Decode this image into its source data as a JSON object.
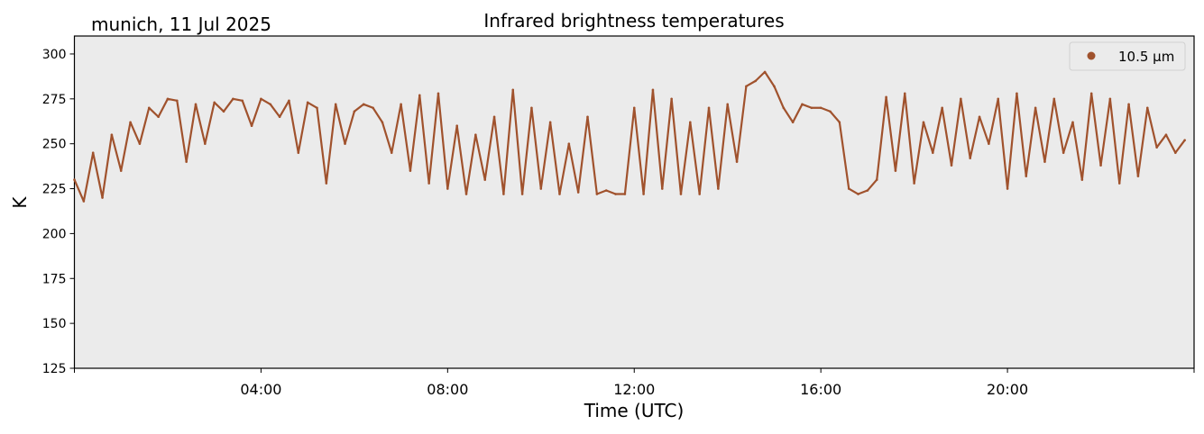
{
  "chart_data": {
    "type": "line",
    "title": "Infrared brightness temperatures",
    "subtitle": "munich, 11 Jul 2025",
    "xlabel": "Time (UTC)",
    "ylabel": "K",
    "xlim": [
      0,
      24
    ],
    "ylim": [
      125,
      310
    ],
    "xticks": [
      {
        "v": 4,
        "label": "04:00"
      },
      {
        "v": 8,
        "label": "08:00"
      },
      {
        "v": 12,
        "label": "12:00"
      },
      {
        "v": 16,
        "label": "16:00"
      },
      {
        "v": 20,
        "label": "20:00"
      }
    ],
    "yticks": [
      125,
      150,
      175,
      200,
      225,
      250,
      275,
      300
    ],
    "grid": false,
    "legend": {
      "position": "top-right",
      "entries": [
        {
          "label": "10.5 µm",
          "color": "#a0522d"
        }
      ]
    },
    "series": [
      {
        "name": "10.5 µm",
        "color": "#a0522d",
        "x_step_hours": 0.2,
        "values": [
          230,
          218,
          245,
          220,
          255,
          235,
          262,
          250,
          270,
          265,
          275,
          274,
          240,
          272,
          250,
          273,
          268,
          275,
          274,
          260,
          275,
          272,
          265,
          274,
          245,
          273,
          270,
          228,
          272,
          250,
          268,
          272,
          270,
          262,
          245,
          272,
          235,
          277,
          228,
          278,
          225,
          260,
          222,
          255,
          230,
          265,
          222,
          280,
          222,
          270,
          225,
          262,
          222,
          250,
          223,
          265,
          222,
          224,
          222,
          222,
          270,
          222,
          280,
          225,
          275,
          222,
          262,
          222,
          270,
          225,
          272,
          240,
          282,
          285,
          290,
          282,
          270,
          262,
          272,
          270,
          270,
          268,
          262,
          225,
          222,
          224,
          230,
          276,
          235,
          278,
          228,
          262,
          245,
          270,
          238,
          275,
          242,
          265,
          250,
          275,
          225,
          278,
          232,
          270,
          240,
          275,
          245,
          262,
          230,
          278,
          238,
          275,
          228,
          272,
          232,
          270,
          248,
          255,
          245,
          252
        ]
      }
    ]
  }
}
